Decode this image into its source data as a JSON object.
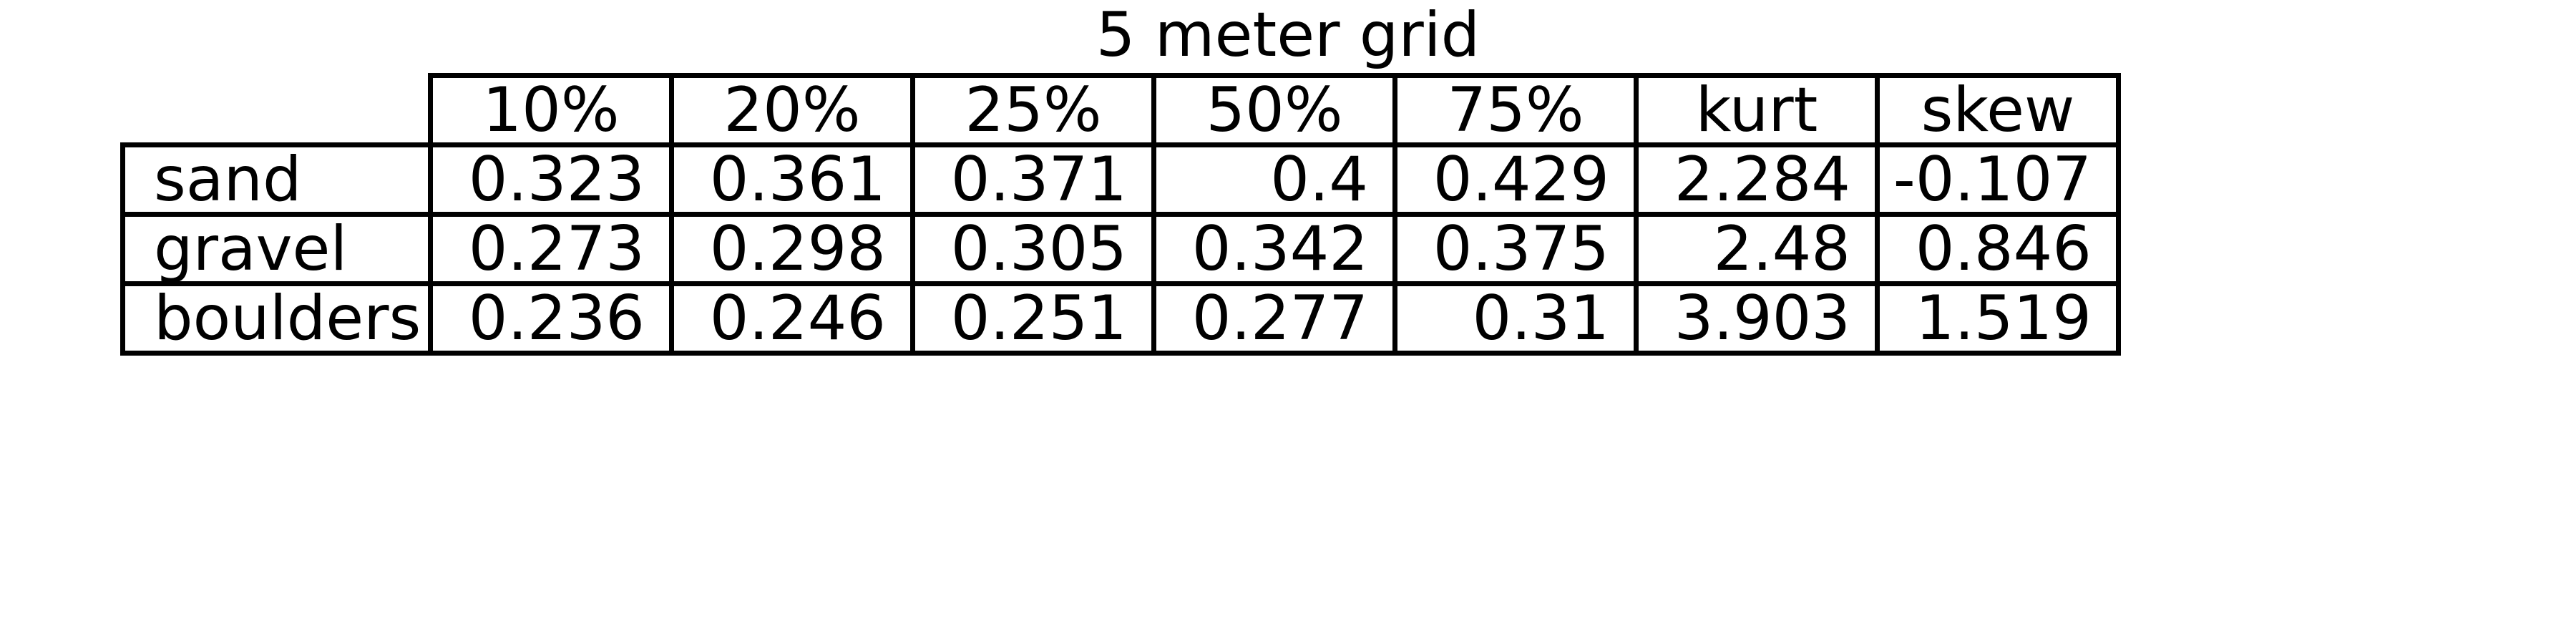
{
  "chart_data": {
    "type": "table",
    "title": "5 meter grid",
    "columns": [
      "10%",
      "20%",
      "25%",
      "50%",
      "75%",
      "kurt",
      "skew"
    ],
    "rows": [
      {
        "label": "sand",
        "values": [
          "0.323",
          "0.361",
          "0.371",
          "0.4",
          "0.429",
          "2.284",
          "-0.107"
        ]
      },
      {
        "label": "gravel",
        "values": [
          "0.273",
          "0.298",
          "0.305",
          "0.342",
          "0.375",
          "2.48",
          "0.846"
        ]
      },
      {
        "label": "boulders",
        "values": [
          "0.236",
          "0.246",
          "0.251",
          "0.277",
          "0.31",
          "3.903",
          "1.519"
        ]
      }
    ]
  }
}
